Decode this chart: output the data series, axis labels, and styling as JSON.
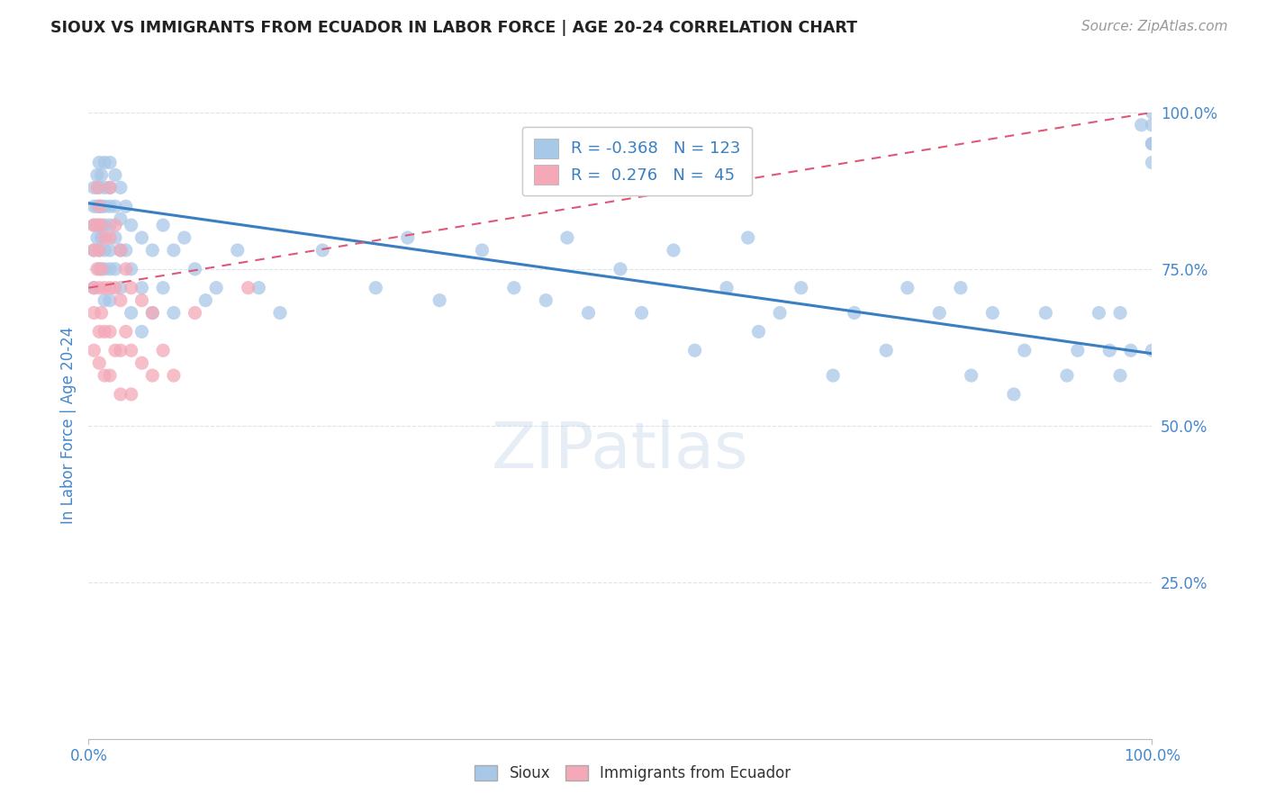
{
  "title": "SIOUX VS IMMIGRANTS FROM ECUADOR IN LABOR FORCE | AGE 20-24 CORRELATION CHART",
  "source": "Source: ZipAtlas.com",
  "ylabel": "In Labor Force | Age 20-24",
  "xlim": [
    0,
    1
  ],
  "ylim": [
    0,
    1
  ],
  "bg_color": "#ffffff",
  "grid_color": "#d8e4f0",
  "blue_dot_color": "#a8c8e8",
  "pink_dot_color": "#f4a8b8",
  "blue_line_color": "#3a7fc1",
  "pink_line_color": "#e05878",
  "axis_label_color": "#4488cc",
  "title_color": "#222222",
  "source_color": "#999999",
  "legend_R1": "-0.368",
  "legend_N1": "123",
  "legend_R2": "0.276",
  "legend_N2": "45",
  "blue_line_start_y": 0.855,
  "blue_line_end_y": 0.615,
  "pink_line_start_y": 0.72,
  "pink_line_end_y": 1.0,
  "blue_scatter_x": [
    0.005,
    0.005,
    0.005,
    0.005,
    0.005,
    0.008,
    0.008,
    0.008,
    0.01,
    0.01,
    0.01,
    0.01,
    0.01,
    0.01,
    0.012,
    0.012,
    0.012,
    0.015,
    0.015,
    0.015,
    0.015,
    0.015,
    0.015,
    0.015,
    0.02,
    0.02,
    0.02,
    0.02,
    0.02,
    0.02,
    0.02,
    0.025,
    0.025,
    0.025,
    0.025,
    0.03,
    0.03,
    0.03,
    0.03,
    0.035,
    0.035,
    0.04,
    0.04,
    0.04,
    0.05,
    0.05,
    0.05,
    0.06,
    0.06,
    0.07,
    0.07,
    0.08,
    0.08,
    0.09,
    0.1,
    0.11,
    0.12,
    0.14,
    0.16,
    0.18,
    0.22,
    0.27,
    0.3,
    0.33,
    0.37,
    0.4,
    0.43,
    0.45,
    0.47,
    0.5,
    0.52,
    0.55,
    0.57,
    0.6,
    0.62,
    0.63,
    0.65,
    0.67,
    0.7,
    0.72,
    0.75,
    0.77,
    0.8,
    0.82,
    0.83,
    0.85,
    0.87,
    0.88,
    0.9,
    0.92,
    0.93,
    0.95,
    0.96,
    0.97,
    0.97,
    0.98,
    0.99,
    1.0,
    1.0,
    1.0,
    1.0,
    1.0,
    1.0
  ],
  "blue_scatter_y": [
    0.88,
    0.85,
    0.82,
    0.78,
    0.72,
    0.9,
    0.85,
    0.8,
    0.92,
    0.88,
    0.85,
    0.82,
    0.78,
    0.75,
    0.9,
    0.85,
    0.8,
    0.92,
    0.88,
    0.85,
    0.82,
    0.78,
    0.75,
    0.7,
    0.92,
    0.88,
    0.85,
    0.82,
    0.78,
    0.75,
    0.7,
    0.9,
    0.85,
    0.8,
    0.75,
    0.88,
    0.83,
    0.78,
    0.72,
    0.85,
    0.78,
    0.82,
    0.75,
    0.68,
    0.8,
    0.72,
    0.65,
    0.78,
    0.68,
    0.82,
    0.72,
    0.78,
    0.68,
    0.8,
    0.75,
    0.7,
    0.72,
    0.78,
    0.72,
    0.68,
    0.78,
    0.72,
    0.8,
    0.7,
    0.78,
    0.72,
    0.7,
    0.8,
    0.68,
    0.75,
    0.68,
    0.78,
    0.62,
    0.72,
    0.8,
    0.65,
    0.68,
    0.72,
    0.58,
    0.68,
    0.62,
    0.72,
    0.68,
    0.72,
    0.58,
    0.68,
    0.55,
    0.62,
    0.68,
    0.58,
    0.62,
    0.68,
    0.62,
    0.68,
    0.58,
    0.62,
    0.98,
    0.95,
    0.92,
    1.0,
    0.98,
    0.95,
    0.62
  ],
  "pink_scatter_x": [
    0.005,
    0.005,
    0.005,
    0.005,
    0.005,
    0.008,
    0.008,
    0.008,
    0.01,
    0.01,
    0.01,
    0.01,
    0.01,
    0.012,
    0.012,
    0.012,
    0.015,
    0.015,
    0.015,
    0.015,
    0.02,
    0.02,
    0.02,
    0.02,
    0.02,
    0.025,
    0.025,
    0.025,
    0.03,
    0.03,
    0.03,
    0.03,
    0.035,
    0.035,
    0.04,
    0.04,
    0.04,
    0.05,
    0.05,
    0.06,
    0.06,
    0.07,
    0.08,
    0.1,
    0.15
  ],
  "pink_scatter_y": [
    0.82,
    0.78,
    0.72,
    0.68,
    0.62,
    0.88,
    0.82,
    0.75,
    0.85,
    0.78,
    0.72,
    0.65,
    0.6,
    0.82,
    0.75,
    0.68,
    0.8,
    0.72,
    0.65,
    0.58,
    0.88,
    0.8,
    0.72,
    0.65,
    0.58,
    0.82,
    0.72,
    0.62,
    0.78,
    0.7,
    0.62,
    0.55,
    0.75,
    0.65,
    0.72,
    0.62,
    0.55,
    0.7,
    0.6,
    0.68,
    0.58,
    0.62,
    0.58,
    0.68,
    0.72
  ]
}
